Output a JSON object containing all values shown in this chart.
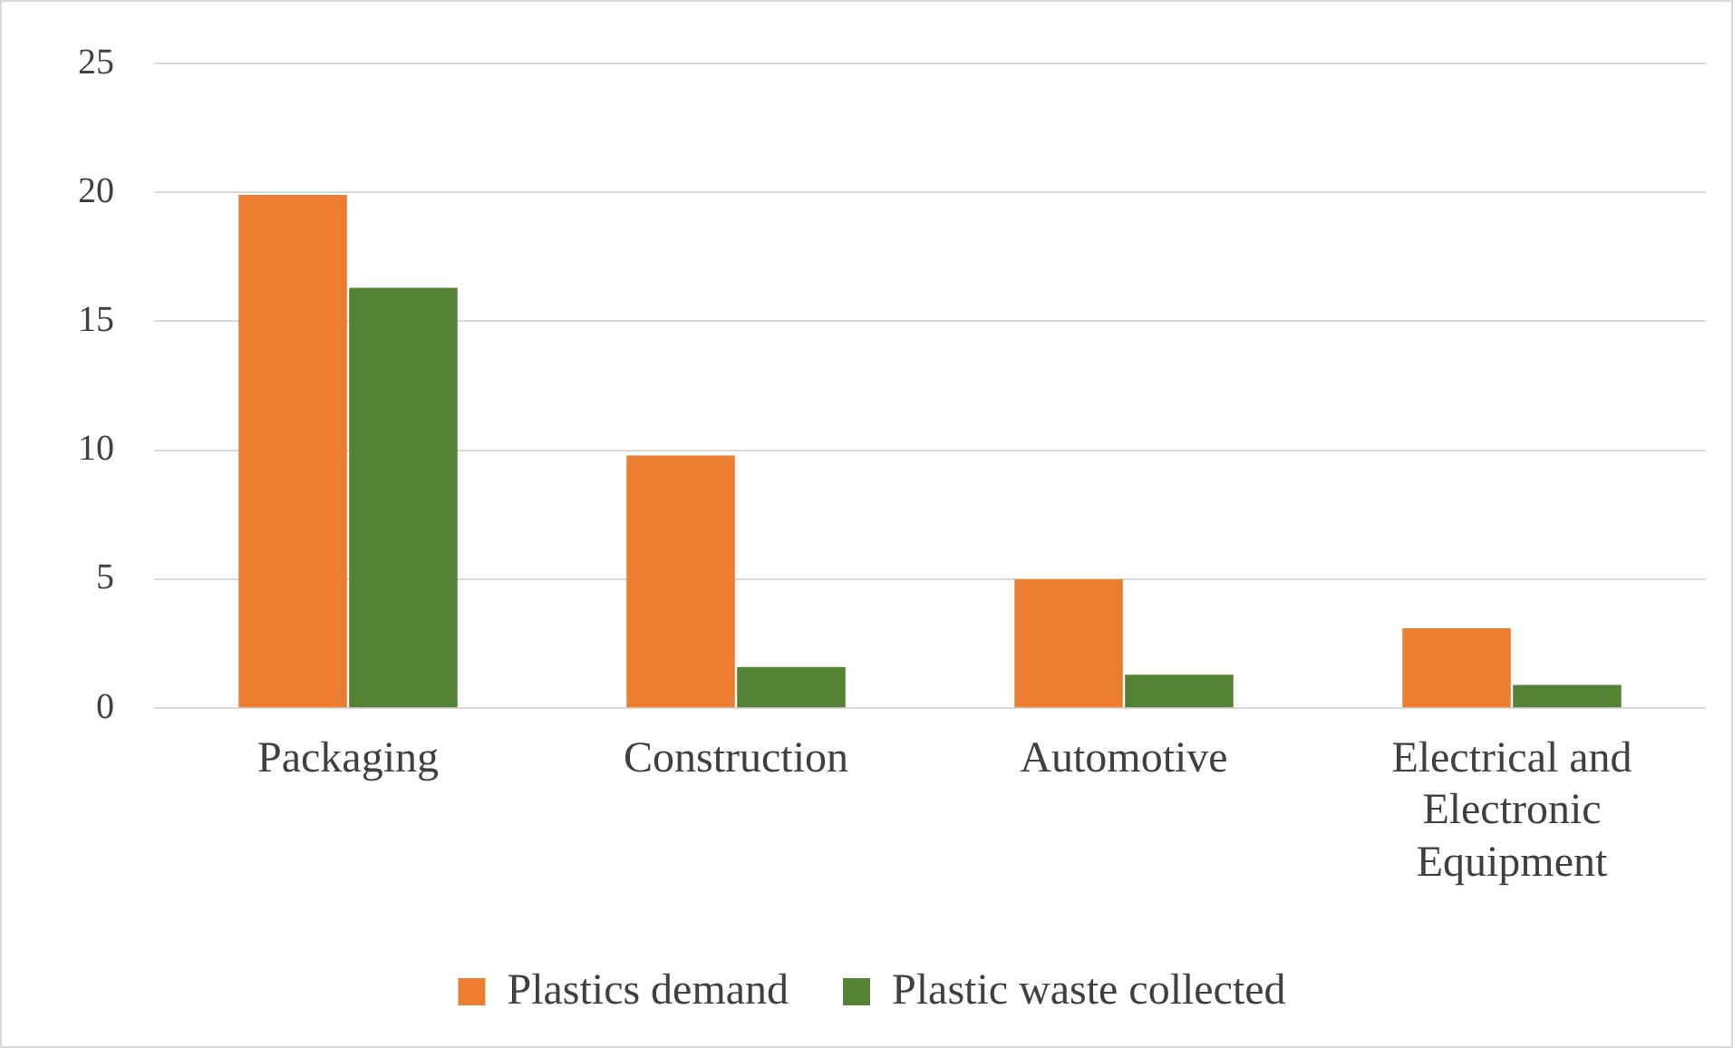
{
  "chart_data": {
    "type": "bar",
    "categories": [
      "Packaging",
      "Construction",
      "Automotive",
      "Electrical and Electronic Equipment"
    ],
    "series": [
      {
        "name": "Plastics demand",
        "color": "#ed7d31",
        "values": [
          19.9,
          9.8,
          5.0,
          3.1
        ]
      },
      {
        "name": "Plastic waste collected",
        "color": "#548235",
        "values": [
          16.3,
          1.6,
          1.3,
          0.9
        ]
      }
    ],
    "ylim": [
      0,
      25
    ],
    "yticks": [
      0,
      5,
      10,
      15,
      20,
      25
    ],
    "grid": "y",
    "legend": "bottom"
  }
}
